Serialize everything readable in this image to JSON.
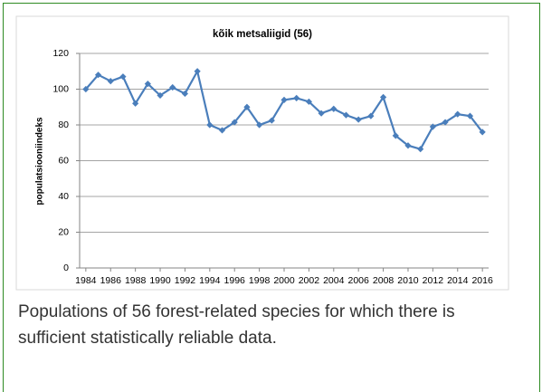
{
  "chart_data": {
    "type": "line",
    "title": "kõik metsaliigid (56)",
    "y_label": "populatsiooniindeks",
    "x": [
      1984,
      1985,
      1986,
      1987,
      1988,
      1989,
      1990,
      1991,
      1992,
      1993,
      1994,
      1995,
      1996,
      1997,
      1998,
      1999,
      2000,
      2001,
      2002,
      2003,
      2004,
      2005,
      2006,
      2007,
      2008,
      2009,
      2010,
      2011,
      2012,
      2013,
      2014,
      2015,
      2016
    ],
    "series": [
      {
        "color": "#4a7ebb",
        "values": [
          100,
          108,
          104.5,
          107,
          92,
          103,
          96.5,
          101,
          97.5,
          110,
          80,
          77,
          81.5,
          90,
          80,
          82.5,
          94,
          95,
          93,
          86.5,
          89,
          85.5,
          83,
          85,
          95.5,
          74,
          68.5,
          66.5,
          79,
          81.5,
          86,
          85,
          76
        ]
      }
    ],
    "xlim": [
      1983.5,
      2016.5
    ],
    "xticks": [
      1984,
      1986,
      1988,
      1990,
      1992,
      1994,
      1996,
      1998,
      2000,
      2002,
      2004,
      2006,
      2008,
      2010,
      2012,
      2014,
      2016
    ],
    "ylim": [
      0,
      120
    ],
    "yticks": [
      0,
      20,
      40,
      60,
      80,
      100,
      120
    ],
    "grid": true
  },
  "caption": "Populations of 56 forest-related species for which there is sufficient statistically reliable data."
}
